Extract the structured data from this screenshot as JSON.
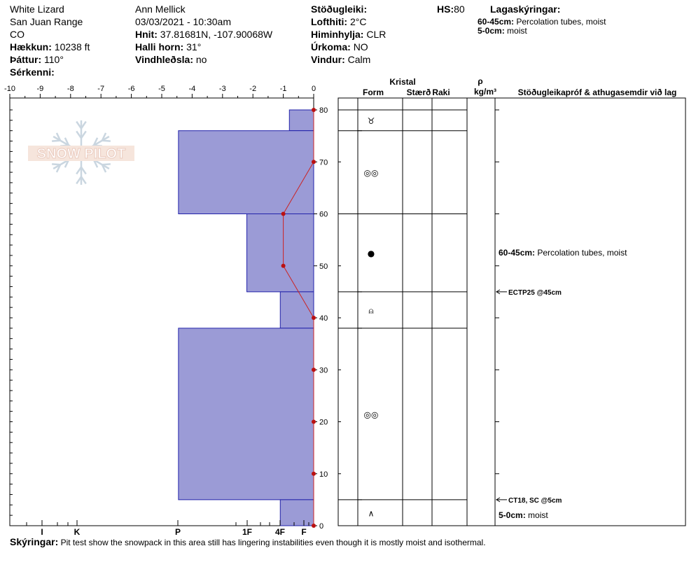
{
  "header": {
    "site": "White Lizard",
    "range": "San Juan Range",
    "state": "CO",
    "elevation_label": "Hækkun:",
    "elevation": "10238 ft",
    "aspect_label": "Þáttur:",
    "aspect": "110°",
    "features_label": "Sérkenni:",
    "observer": "Ann Mellick",
    "datetime": "03/03/2021 - 10:30am",
    "coords_label": "Hnit:",
    "coords": "37.81681N, -107.90068W",
    "slope_label": "Halli horn:",
    "slope": "31°",
    "wind_loading_label": "Vindhleðsla:",
    "wind_loading": "no",
    "stability_label": "Stöðugleiki:",
    "air_temp_label": "Lofthiti:",
    "air_temp": "2°C",
    "sky_label": "Himinhylja:",
    "sky": "CLR",
    "precip_label": "Úrkoma:",
    "precip": "NO",
    "wind_label": "Vindur:",
    "wind": "Calm",
    "hs_label": "HS:",
    "hs": "80",
    "legend_label": "Lagaskýringar:",
    "legend_items": [
      {
        "depth": "60-45cm:",
        "text": "Percolation tubes, moist"
      },
      {
        "depth": "5-0cm:",
        "text": "moist"
      }
    ]
  },
  "columns": {
    "kristal": "Kristal",
    "form": "Form",
    "size": "Stærð",
    "moisture": "Raki",
    "rho": "ρ",
    "density_unit": "kg/m³",
    "comments": "Stöðugleikapróf & athugasemdir við lag"
  },
  "footer": {
    "label": "Skýringar:",
    "text": "Pit test show the snowpack in this area still has lingering instabilities even though it is mostly moist and isothermal."
  },
  "logo": {
    "text": "SNOW PILOT"
  },
  "chart_data": {
    "type": "bar",
    "title": "",
    "temp_axis": {
      "ticks": [
        "-10",
        "-9",
        "-8",
        "-7",
        "-6",
        "-5",
        "-4",
        "-3",
        "-2",
        "-1",
        "0"
      ],
      "range": [
        -10,
        0
      ]
    },
    "depth_axis": {
      "ticks": [
        "0",
        "10",
        "20",
        "30",
        "40",
        "50",
        "60",
        "70",
        "80"
      ],
      "range": [
        0,
        80
      ]
    },
    "hardness_axis": {
      "labels": [
        "I",
        "K",
        "P",
        "1F",
        "4F",
        "F"
      ]
    },
    "hardness_layers": [
      {
        "top": 80,
        "bottom": 76,
        "hardness_temp_units": -0.8
      },
      {
        "top": 76,
        "bottom": 60,
        "hardness_temp_units": -4.45
      },
      {
        "top": 60,
        "bottom": 45,
        "hardness_temp_units": -2.2
      },
      {
        "top": 45,
        "bottom": 38,
        "hardness_temp_units": -1.1
      },
      {
        "top": 38,
        "bottom": 5,
        "hardness_temp_units": -4.45
      },
      {
        "top": 5,
        "bottom": 0,
        "hardness_temp_units": -1.1
      }
    ],
    "temperature_profile": [
      {
        "depth": 80,
        "temp": 0
      },
      {
        "depth": 70,
        "temp": 0
      },
      {
        "depth": 60,
        "temp": -1
      },
      {
        "depth": 50,
        "temp": -1
      },
      {
        "depth": 40,
        "temp": 0
      },
      {
        "depth": 30,
        "temp": 0
      },
      {
        "depth": 20,
        "temp": 0
      },
      {
        "depth": 10,
        "temp": 0
      },
      {
        "depth": 0,
        "temp": 0
      }
    ],
    "layers": [
      {
        "top": 80,
        "bottom": 76,
        "form_icon": "rounded-polycrystals-icon",
        "glyph": "♉"
      },
      {
        "top": 76,
        "bottom": 60,
        "form_icon": "melt-forms-icon",
        "glyph": "◎◎"
      },
      {
        "top": 60,
        "bottom": 45,
        "form_icon": "ice-formation-icon",
        "glyph": "●"
      },
      {
        "top": 45,
        "bottom": 38,
        "form_icon": "faceted-rounded-icon",
        "glyph": "⍝"
      },
      {
        "top": 38,
        "bottom": 5,
        "form_icon": "melt-forms-icon",
        "glyph": "◎◎"
      },
      {
        "top": 5,
        "bottom": 0,
        "form_icon": "depth-hoar-icon",
        "glyph": "∧"
      }
    ],
    "comments": [
      {
        "depth": 52.5,
        "bold": "60-45cm:",
        "text": "Percolation tubes, moist",
        "arrow": false
      },
      {
        "depth": 45,
        "bold": "ECTP25 @45cm",
        "text": "",
        "arrow": true
      },
      {
        "depth": 5,
        "bold": "CT18, SC @5cm",
        "text": "",
        "arrow": true
      },
      {
        "depth": 2,
        "bold": "5-0cm:",
        "text": "moist",
        "arrow": false
      }
    ],
    "colors": {
      "hardness_fill": "#9b9bd6",
      "hardness_stroke": "#2222aa",
      "temp_line": "#cc2222",
      "temp_point": "#bb1111"
    }
  }
}
